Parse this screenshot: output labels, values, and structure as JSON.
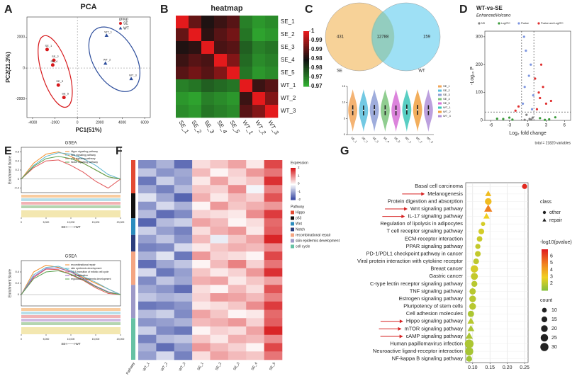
{
  "chart_data": [
    {
      "type": "scatter",
      "panel": "A",
      "title": "PCA",
      "xlabel": "PC1(51%)",
      "ylabel": "PC2(21.3%)",
      "legend_title": "group",
      "xlim": [
        -4500,
        6500
      ],
      "ylim": [
        -3200,
        3300
      ],
      "xticks": [
        -4000,
        -2000,
        0,
        2000,
        4000,
        6000
      ],
      "yticks": [
        -2000,
        0,
        2000
      ],
      "series": [
        {
          "name": "SE",
          "color": "#d7191c",
          "marker": "circle",
          "labels": [
            "SE_1",
            "SE_2",
            "SE_4",
            "SE_3",
            "SE_5"
          ],
          "x": [
            -2700,
            -2100,
            -2200,
            -1700,
            -1200
          ],
          "y": [
            1200,
            500,
            200,
            -1100,
            -1900
          ]
        },
        {
          "name": "WT",
          "color": "#2b4c9b",
          "marker": "triangle",
          "labels": [
            "WT_1",
            "WT_2",
            "WT_3"
          ],
          "x": [
            2600,
            2500,
            4800
          ],
          "y": [
            2100,
            300,
            -700
          ]
        }
      ]
    },
    {
      "type": "heatmap",
      "panel": "B",
      "title": "heatmap",
      "rows": [
        "SE_1",
        "SE_2",
        "SE_3",
        "SE_4",
        "SE_5",
        "WT_1",
        "WT_2",
        "WT_3"
      ],
      "columns": [
        "SE_1",
        "SE_2",
        "SE_3",
        "SE_4",
        "SE_5",
        "WT_1",
        "WT_2",
        "WT_3"
      ],
      "values": [
        [
          1,
          0.991,
          0.986,
          0.988,
          0.99,
          0.975,
          0.973,
          0.974
        ],
        [
          0.991,
          1,
          0.987,
          0.99,
          0.992,
          0.976,
          0.972,
          0.973
        ],
        [
          0.986,
          0.987,
          1,
          0.989,
          0.99,
          0.978,
          0.975,
          0.976
        ],
        [
          0.988,
          0.99,
          0.989,
          1,
          0.993,
          0.977,
          0.974,
          0.975
        ],
        [
          0.99,
          0.992,
          0.99,
          0.993,
          1,
          0.976,
          0.973,
          0.974
        ],
        [
          0.975,
          0.976,
          0.978,
          0.977,
          0.976,
          1,
          0.988,
          0.99
        ],
        [
          0.973,
          0.972,
          0.975,
          0.974,
          0.973,
          0.988,
          1,
          0.993
        ],
        [
          0.974,
          0.973,
          0.976,
          0.975,
          0.974,
          0.99,
          0.993,
          1
        ]
      ],
      "zlim": [
        0.97,
        1
      ],
      "zticks": [
        1,
        {
          "value": 0.995,
          "label": "0.99"
        },
        0.99,
        {
          "value": 0.985,
          "label": "0.98"
        },
        0.98,
        {
          "value": 0.975,
          "label": "0.97"
        },
        0.97
      ],
      "colors": [
        "#33b833",
        "#111111",
        "#e41a1c"
      ]
    },
    {
      "type": "venn",
      "panel": "C",
      "sets": [
        {
          "name": "SE",
          "color": "#f5c77e"
        },
        {
          "name": "WT",
          "color": "#86d8f2"
        }
      ],
      "values": [
        431,
        12788,
        159
      ]
    },
    {
      "type": "violin",
      "categories": [
        "SE_1",
        "SE_2",
        "SE_3",
        "SE_4",
        "SE_5",
        "WT_1",
        "WT_2",
        "WT_3"
      ],
      "colors": [
        "#f2a65a",
        "#5bc0de",
        "#8e9fd6",
        "#7cc47c",
        "#d66fd6",
        "#3cc6b8",
        "#f0a040",
        "#b08fd8"
      ],
      "values": [
        7.6,
        7.5,
        7.7,
        7.6,
        7.5,
        7.8,
        7.7,
        7.6
      ],
      "ylim": [
        0,
        15
      ],
      "yticks": [
        0,
        5,
        10,
        15
      ]
    },
    {
      "type": "volcano",
      "panel": "D",
      "title": "WT-vs-SE",
      "subtitle": "EnhancedVolcano",
      "xlabel": "Log₂ fold change",
      "ylabel": "-Log₁₀ P",
      "caption": "total = 21820 variables",
      "xlim": [
        -7,
        7
      ],
      "ylim": [
        0,
        320
      ],
      "xticks": [
        -6,
        -3,
        0,
        3,
        6
      ],
      "yticks": [
        0,
        100,
        200,
        300
      ],
      "xcutoffs": [
        -1,
        1
      ],
      "ycutoff": 30,
      "series": [
        {
          "name": "NS",
          "color": "#808080",
          "x": [
            -0.5,
            0.3,
            0.8,
            -0.2,
            0.6
          ],
          "y": [
            2,
            5,
            10,
            20,
            3
          ]
        },
        {
          "name": "Log2FC",
          "color": "#3a9a3a",
          "x": [
            -4,
            -3,
            -2.5,
            2,
            3.5,
            4.5,
            -5,
            2.8
          ],
          "y": [
            5,
            10,
            3,
            8,
            4,
            11,
            6,
            2
          ]
        },
        {
          "name": "Pvalue",
          "color": "#7d96e0",
          "x": [
            -0.8,
            -0.5,
            0.5,
            0.9,
            -0.3,
            0.2,
            0.7,
            -0.6
          ],
          "y": [
            60,
            120,
            200,
            90,
            250,
            160,
            40,
            300
          ]
        },
        {
          "name": "Pvalue and Log2FC",
          "color": "#e03030",
          "x": [
            1.5,
            2,
            2.5,
            3,
            -1.5,
            -2,
            1.2,
            3.8,
            2.2,
            1.8
          ],
          "y": [
            40,
            80,
            120,
            60,
            50,
            35,
            150,
            70,
            200,
            100
          ]
        }
      ]
    },
    {
      "type": "line",
      "panel": "E",
      "title": "GSEA",
      "ylabel": "Enrichment Score",
      "xlabel": "SE<——>WT",
      "x": [
        0,
        2500,
        5000,
        7500,
        10000,
        12500,
        15000,
        17500,
        20000
      ],
      "xlim": [
        0,
        20000
      ],
      "xticks": [
        0,
        {
          "value": 5000,
          "label": "5,000"
        },
        {
          "value": 10000,
          "label": "10,000"
        },
        {
          "value": 15000,
          "label": "15,000"
        },
        {
          "value": 20000,
          "label": "20,000"
        }
      ],
      "ylim": [
        -0.3,
        0.7
      ],
      "yticks": [
        -0.2,
        0,
        0.2,
        0.4,
        0.6
      ],
      "series": [
        {
          "name": "Hippo signaling pathway",
          "color": "#f28e2b",
          "values": [
            0,
            0.35,
            0.55,
            0.6,
            0.5,
            0.35,
            0.2,
            0.05,
            0
          ]
        },
        {
          "name": "Wnt signaling pathway",
          "color": "#5fb7d0",
          "values": [
            0,
            0.3,
            0.5,
            0.58,
            0.55,
            0.45,
            0.3,
            0.1,
            0
          ]
        },
        {
          "name": "p53 signaling pathway",
          "color": "#e15759",
          "values": [
            0,
            0.25,
            0.4,
            0.42,
            0.3,
            0.15,
            -0.05,
            -0.2,
            0
          ]
        },
        {
          "name": "Notch signaling pathway",
          "color": "#59a14f",
          "values": [
            0,
            0.28,
            0.45,
            0.5,
            0.45,
            0.35,
            0.2,
            0.05,
            0
          ]
        }
      ]
    },
    {
      "type": "line",
      "title": "GSEA",
      "ylabel": "Enrichment Score",
      "xlabel": "SE<——>WT",
      "x": [
        0,
        2500,
        5000,
        7500,
        10000,
        12500,
        15000,
        17500,
        20000
      ],
      "xlim": [
        0,
        20000
      ],
      "xticks": [
        0,
        {
          "value": 5000,
          "label": "5,000"
        },
        {
          "value": 10000,
          "label": "10,000"
        },
        {
          "value": 15000,
          "label": "15,000"
        },
        {
          "value": 20000,
          "label": "20,000"
        }
      ],
      "ylim": [
        -0.2,
        0.6
      ],
      "yticks": [
        0,
        0.2,
        0.4
      ],
      "series": [
        {
          "name": "recombinational repair",
          "color": "#f28e2b",
          "values": [
            0,
            0.4,
            0.52,
            0.48,
            0.4,
            0.3,
            0.2,
            0.1,
            0
          ]
        },
        {
          "name": "skin epidermis development",
          "color": "#5fb7d0",
          "values": [
            0,
            0.35,
            0.48,
            0.5,
            0.42,
            0.32,
            0.22,
            0.1,
            0
          ]
        },
        {
          "name": "G1/S transition of mitotic cell cycle",
          "color": "#e15759",
          "values": [
            0,
            0.3,
            0.45,
            0.44,
            0.35,
            0.25,
            0.12,
            0.02,
            0
          ]
        },
        {
          "name": "DNA replication",
          "color": "#9467bd",
          "values": [
            0,
            0.32,
            0.46,
            0.47,
            0.4,
            0.28,
            0.15,
            0.05,
            0
          ]
        },
        {
          "name": "regulation of epidermis development",
          "color": "#59a14f",
          "values": [
            0,
            0.28,
            0.4,
            0.42,
            0.36,
            0.26,
            0.14,
            0.04,
            0
          ]
        }
      ]
    },
    {
      "type": "expression-heatmap",
      "panel": "F",
      "legend_title": "Expression",
      "pathway_title": "Pathway",
      "columns": [
        "WT_1",
        "WT_2",
        "WT_3",
        "SE_1",
        "SE_2",
        "SE_3",
        "SE_4",
        "SE_5"
      ],
      "zlim": [
        -2,
        2
      ],
      "zticks": [
        2,
        1,
        0,
        -1,
        -2
      ],
      "colors": [
        "#2c3e9e",
        "#ffffff",
        "#d7191c"
      ],
      "pathways": [
        {
          "name": "Hippo",
          "color": "#e34a33",
          "rows": 4
        },
        {
          "name": "p53",
          "color": "#111111",
          "rows": 3
        },
        {
          "name": "Wnt",
          "color": "#2b8cbe",
          "rows": 2
        },
        {
          "name": "Notch",
          "color": "#2c3e7e",
          "rows": 2
        },
        {
          "name": "recombinational repair",
          "color": "#f4a582",
          "rows": 4
        },
        {
          "name": "skin epidermis development",
          "color": "#9e9ac8",
          "rows": 4
        },
        {
          "name": "cell cycle",
          "color": "#66c2a4",
          "rows": 5
        }
      ],
      "values": [
        [
          -1.2,
          -0.8,
          -1.5,
          0.3,
          0.5,
          0.8,
          0.2,
          1.6
        ],
        [
          -0.6,
          -1.1,
          -0.9,
          0.6,
          0.1,
          0.4,
          0.9,
          1.2
        ],
        [
          -1.4,
          -0.5,
          -1.0,
          0.2,
          0.8,
          0.3,
          0.5,
          1.8
        ],
        [
          -0.9,
          -1.3,
          -0.7,
          0.5,
          0.4,
          1.0,
          -0.1,
          1.1
        ],
        [
          -0.3,
          -0.9,
          -1.6,
          0.7,
          0.2,
          0.6,
          0.4,
          1.5
        ],
        [
          -1.1,
          -0.4,
          -0.8,
          0.1,
          0.9,
          0.5,
          0.7,
          0.9
        ],
        [
          -0.7,
          -1.5,
          -1.2,
          0.4,
          0.3,
          0.2,
          1.0,
          1.7
        ],
        [
          -1.6,
          -0.7,
          -0.5,
          0.8,
          0.6,
          0.1,
          0.3,
          1.3
        ],
        [
          -0.5,
          -1.0,
          -1.3,
          0.3,
          0.7,
          0.9,
          0.2,
          1.4
        ],
        [
          -1.0,
          -0.6,
          -1.1,
          0.6,
          -0.2,
          0.5,
          0.8,
          1.9
        ],
        [
          -1.3,
          -1.2,
          -0.4,
          0.2,
          0.5,
          0.7,
          0.6,
          1.0
        ],
        [
          -0.8,
          -0.3,
          -1.4,
          0.9,
          0.4,
          0.3,
          0.1,
          1.6
        ],
        [
          -1.5,
          -0.9,
          -0.6,
          0.1,
          0.6,
          1.1,
          0.4,
          1.2
        ],
        [
          -0.4,
          -1.4,
          -1.0,
          0.5,
          0.2,
          0.4,
          0.9,
          1.8
        ],
        [
          -1.2,
          -0.6,
          -0.9,
          0.7,
          0.8,
          0.2,
          0.5,
          0.8
        ],
        [
          -0.9,
          -1.1,
          -1.5,
          0.3,
          0.1,
          0.6,
          0.3,
          1.5
        ],
        [
          -0.6,
          -0.8,
          -0.7,
          0.4,
          0.9,
          0.8,
          0.6,
          1.1
        ],
        [
          -1.4,
          -1.3,
          -1.1,
          0.2,
          0.3,
          0.5,
          1.0,
          1.7
        ],
        [
          -0.7,
          -0.5,
          -1.2,
          0.8,
          0.5,
          0.1,
          0.2,
          1.3
        ],
        [
          -1.1,
          -1.0,
          -0.8,
          0.6,
          0.7,
          0.9,
          0.4,
          1.4
        ],
        [
          -0.5,
          -1.2,
          -1.4,
          0.1,
          0.4,
          0.3,
          0.8,
          1.9
        ],
        [
          -1.3,
          -0.7,
          -0.6,
          0.5,
          0.2,
          0.7,
          0.6,
          1.0
        ],
        [
          -0.8,
          -1.5,
          -1.0,
          0.9,
          0.6,
          0.4,
          0.1,
          1.6
        ],
        [
          -1.0,
          -0.4,
          -1.3,
          0.3,
          0.8,
          0.6,
          0.5,
          1.2
        ]
      ]
    },
    {
      "type": "dotplot",
      "panel": "G",
      "categories": [
        "Basal cell carcinoma",
        "Melanogenesis",
        "Protein digestion and absorption",
        "Wnt signaling pathway",
        "IL-17 signaling pathway",
        "Regulation of lipolysis in adipocytes",
        "T cell receptor signaling pathway",
        "ECM-receptor interaction",
        "PPAR signaling pathway",
        "PD-1/PDL1 checkpoint pathway in cancer",
        "Viral protein interaction with cytokine receptor",
        "Breast cancer",
        "Gastric cancer",
        "C-type lectin receptor signaling pathway",
        "TNF signaling pathway",
        "Estrogen signaling pathway",
        "Pluripotency of stem cells",
        "Cell adhesion molecules",
        "Hippo signaling pathway",
        "mTOR signaling pathway",
        "cAMP signaling pathway",
        "Human papillomavirus infection",
        "Neuroactive ligand-receptor interaction",
        "NF-kappa B signaling pathway"
      ],
      "values": [
        0.25,
        0.145,
        0.145,
        0.145,
        0.14,
        0.13,
        0.125,
        0.12,
        0.115,
        0.115,
        0.11,
        0.105,
        0.105,
        0.105,
        0.1,
        0.1,
        0.1,
        0.095,
        0.095,
        0.095,
        0.09,
        0.09,
        0.09,
        0.09
      ],
      "neglog10p": [
        6.8,
        3.5,
        3.5,
        5,
        3,
        2.5,
        2.5,
        2.3,
        2.2,
        2.2,
        2.1,
        2.5,
        2.2,
        2,
        2,
        2,
        2,
        1.8,
        2,
        1.8,
        1.8,
        1.8,
        1.7,
        1.6
      ],
      "counts": [
        12,
        18,
        20,
        30,
        18,
        8,
        15,
        14,
        12,
        15,
        15,
        25,
        22,
        16,
        18,
        20,
        20,
        18,
        22,
        22,
        25,
        35,
        30,
        15
      ],
      "class": [
        "other",
        "repair",
        "other",
        "repair",
        "repair",
        "other",
        "other",
        "other",
        "other",
        "other",
        "other",
        "other",
        "other",
        "other",
        "other",
        "other",
        "other",
        "other",
        "repair",
        "repair",
        "repair",
        "other",
        "other",
        "other"
      ],
      "class_title": "class",
      "classes": [
        "other",
        "repair"
      ],
      "class_shapes": {
        "other": "circle",
        "repair": "triangle"
      },
      "color_title": "-log10(pvalue)",
      "clim": [
        1,
        7
      ],
      "color_ticks": [
        2,
        3,
        4,
        5,
        6
      ],
      "colors": [
        "#7fbf3f",
        "#f0d020",
        "#f08020",
        "#e02020"
      ],
      "size_title": "count",
      "size_ticks": [
        10,
        15,
        20,
        25,
        30
      ],
      "xlim": [
        0.08,
        0.26
      ],
      "xticks": [
        {
          "value": 0.1,
          "label": "0.10"
        },
        0.15,
        {
          "value": 0.2,
          "label": "0.20"
        },
        0.25
      ]
    }
  ]
}
